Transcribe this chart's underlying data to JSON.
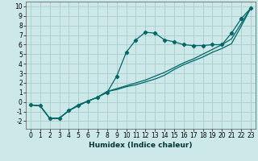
{
  "xlabel": "Humidex (Indice chaleur)",
  "background_color": "#cce8e8",
  "grid_color": "#aacccc",
  "line_color": "#006666",
  "xlim": [
    -0.5,
    23.5
  ],
  "ylim": [
    -2.8,
    10.5
  ],
  "xticks": [
    0,
    1,
    2,
    3,
    4,
    5,
    6,
    7,
    8,
    9,
    10,
    11,
    12,
    13,
    14,
    15,
    16,
    17,
    18,
    19,
    20,
    21,
    22,
    23
  ],
  "yticks": [
    -2,
    -1,
    0,
    1,
    2,
    3,
    4,
    5,
    6,
    7,
    8,
    9,
    10
  ],
  "curve1_x": [
    0,
    1,
    2,
    3,
    4,
    5,
    6,
    7,
    8,
    9,
    10,
    11,
    12,
    13,
    14,
    15,
    16,
    17,
    18,
    19,
    20,
    21,
    22,
    23
  ],
  "curve1_y": [
    -0.3,
    -0.4,
    -1.7,
    -1.7,
    -0.9,
    -0.4,
    0.1,
    0.5,
    1.0,
    2.7,
    5.2,
    6.5,
    7.3,
    7.2,
    6.5,
    6.3,
    6.0,
    5.9,
    5.9,
    6.0,
    6.0,
    7.2,
    8.7,
    9.8
  ],
  "curve2_x": [
    0,
    1,
    2,
    3,
    4,
    5,
    6,
    7,
    8,
    9,
    10,
    11,
    12,
    13,
    14,
    15,
    16,
    17,
    18,
    19,
    20,
    21,
    22,
    23
  ],
  "curve2_y": [
    -0.3,
    -0.4,
    -1.7,
    -1.7,
    -0.9,
    -0.3,
    0.1,
    0.5,
    1.1,
    1.3,
    1.6,
    1.8,
    2.1,
    2.4,
    2.8,
    3.4,
    3.9,
    4.3,
    4.7,
    5.2,
    5.6,
    6.1,
    7.9,
    9.8
  ],
  "curve3_x": [
    0,
    1,
    2,
    3,
    4,
    5,
    6,
    7,
    8,
    9,
    10,
    11,
    12,
    13,
    14,
    15,
    16,
    17,
    18,
    19,
    20,
    21,
    22,
    23
  ],
  "curve3_y": [
    -0.3,
    -0.4,
    -1.7,
    -1.7,
    -0.9,
    -0.3,
    0.1,
    0.5,
    1.1,
    1.4,
    1.7,
    2.0,
    2.3,
    2.7,
    3.1,
    3.6,
    4.1,
    4.5,
    5.0,
    5.5,
    6.0,
    6.6,
    8.2,
    9.8
  ],
  "xlabel_fontsize": 6.5,
  "tick_fontsize": 5.5,
  "linewidth": 0.9,
  "markersize": 2.2
}
